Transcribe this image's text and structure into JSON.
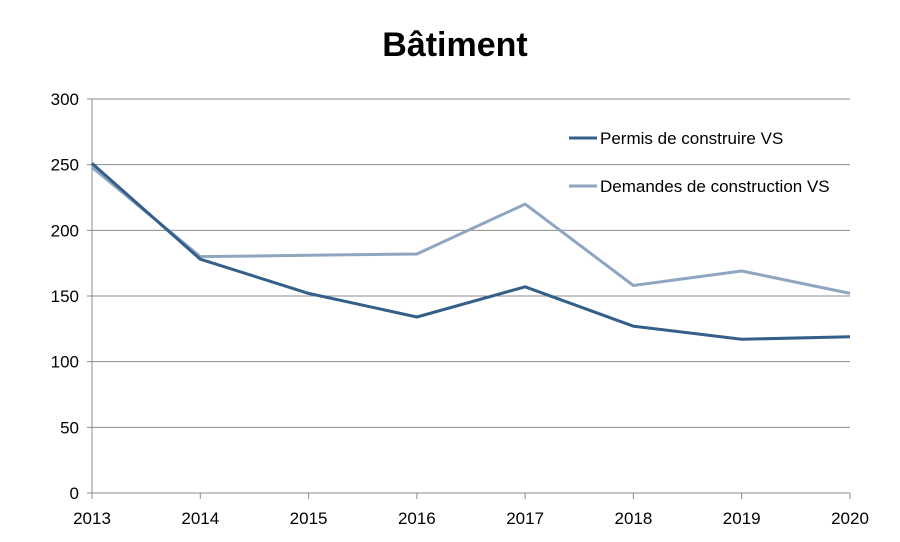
{
  "chart_data": {
    "type": "line",
    "title": "Bâtiment",
    "xlabel": "",
    "ylabel": "",
    "x": [
      "2013",
      "2014",
      "2015",
      "2016",
      "2017",
      "2018",
      "2019",
      "2020"
    ],
    "ylim": [
      0,
      300
    ],
    "yticks": [
      0,
      50,
      100,
      150,
      200,
      250,
      300
    ],
    "grid": true,
    "legend_position": "top-right",
    "series": [
      {
        "name": "Permis de construire VS",
        "color": "#335f8a",
        "values": [
          251,
          178,
          152,
          134,
          157,
          127,
          117,
          119
        ]
      },
      {
        "name": "Demandes de construction VS",
        "color": "#8fa6c1",
        "values": [
          248,
          180,
          181,
          182,
          220,
          158,
          169,
          152
        ]
      }
    ]
  }
}
